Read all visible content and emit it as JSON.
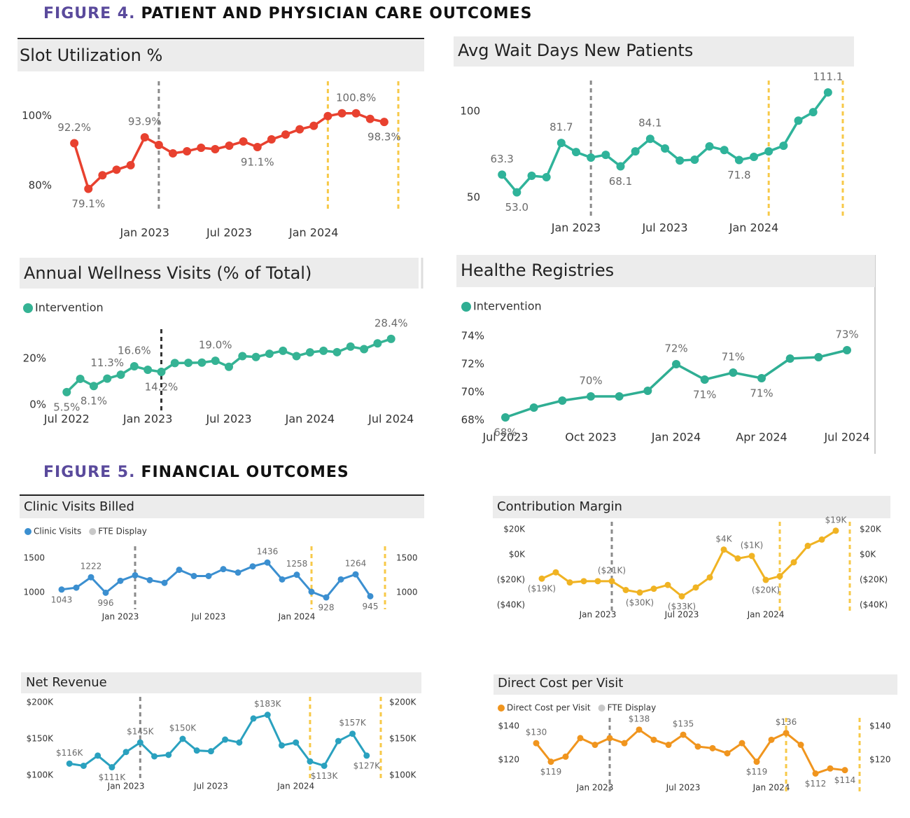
{
  "figures": [
    {
      "label": "FIGURE 4.",
      "title": "PATIENT AND PHYSICIAN CARE OUTCOMES"
    },
    {
      "label": "FIGURE 5.",
      "title": "FINANCIAL OUTCOMES"
    }
  ],
  "chart_data": [
    {
      "type": "line",
      "title": "Slot Utilization %",
      "color": "#e8412f",
      "x": [
        "2022-08",
        "2022-09",
        "2022-10",
        "2022-11",
        "2022-12",
        "2023-01",
        "2023-02",
        "2023-03",
        "2023-04",
        "2023-05",
        "2023-06",
        "2023-07",
        "2023-08",
        "2023-09",
        "2023-10",
        "2023-11",
        "2023-12",
        "2024-01",
        "2024-02",
        "2024-03",
        "2024-04",
        "2024-05",
        "2024-06"
      ],
      "values": [
        92.2,
        79.1,
        83.0,
        84.6,
        85.9,
        93.9,
        91.7,
        89.3,
        89.9,
        90.9,
        90.5,
        91.5,
        92.7,
        91.1,
        93.3,
        94.7,
        96.2,
        97.2,
        100.0,
        100.8,
        100.8,
        99.2,
        98.3
      ],
      "value_labels": [
        "92.2%",
        "79.1%",
        null,
        null,
        null,
        "93.9%",
        null,
        null,
        null,
        null,
        null,
        null,
        null,
        "91.1%",
        null,
        null,
        null,
        null,
        null,
        null,
        "100.8%",
        null,
        "98.3%"
      ],
      "xlim": [
        "2022-07",
        "2024-07"
      ],
      "xticks": [
        {
          "value": "2023-01",
          "label": "Jan 2023"
        },
        {
          "value": "2023-07",
          "label": "Jul 2023"
        },
        {
          "value": "2024-01",
          "label": "Jan 2024"
        }
      ],
      "ylim": [
        73,
        110
      ],
      "yticks": [
        {
          "value": 80,
          "label": "80%"
        },
        {
          "value": 100,
          "label": "100%"
        }
      ],
      "reference_lines": [
        {
          "x": "2023-02",
          "color": "#8a8a8a"
        },
        {
          "x": "2024-02",
          "color": "#f7c948"
        },
        {
          "x": "2024-07",
          "color": "#f7c948"
        }
      ]
    },
    {
      "type": "line",
      "title": "Avg Wait Days New Patients",
      "color": "#2fb39a",
      "x": [
        "2022-08",
        "2022-09",
        "2022-10",
        "2022-11",
        "2022-12",
        "2023-01",
        "2023-02",
        "2023-03",
        "2023-04",
        "2023-05",
        "2023-06",
        "2023-07",
        "2023-08",
        "2023-09",
        "2023-10",
        "2023-11",
        "2023-12",
        "2024-01",
        "2024-02",
        "2024-03",
        "2024-04",
        "2024-05",
        "2024-06"
      ],
      "values": [
        63.3,
        53.0,
        62.6,
        61.8,
        81.7,
        76.4,
        73.2,
        74.8,
        68.1,
        76.8,
        84.1,
        78.5,
        71.5,
        72.0,
        79.7,
        77.6,
        71.8,
        73.6,
        76.8,
        80.1,
        94.7,
        99.6,
        111.1
      ],
      "value_labels": [
        "63.3",
        "53.0",
        null,
        null,
        "81.7",
        null,
        null,
        null,
        "68.1",
        null,
        "84.1",
        null,
        null,
        null,
        null,
        null,
        "71.8",
        null,
        null,
        null,
        null,
        null,
        "111.1"
      ],
      "xlim": [
        "2022-07",
        "2024-07"
      ],
      "xticks": [
        {
          "value": "2023-01",
          "label": "Jan 2023"
        },
        {
          "value": "2023-07",
          "label": "Jul 2023"
        },
        {
          "value": "2024-01",
          "label": "Jan 2024"
        }
      ],
      "ylim": [
        39,
        118
      ],
      "yticks": [
        50,
        100
      ],
      "reference_lines": [
        {
          "x": "2023-02",
          "color": "#8a8a8a"
        },
        {
          "x": "2024-02",
          "color": "#f7c948"
        },
        {
          "x": "2024-07",
          "color": "#f7c948"
        }
      ]
    },
    {
      "type": "line",
      "title": "Annual Wellness Visits (% of Total)",
      "x": [
        "2022-07",
        "2022-08",
        "2022-09",
        "2022-10",
        "2022-11",
        "2022-12",
        "2023-01",
        "2023-02",
        "2023-03",
        "2023-04",
        "2023-05",
        "2023-06",
        "2023-07",
        "2023-08",
        "2023-09",
        "2023-10",
        "2023-11",
        "2023-12",
        "2024-01",
        "2024-02",
        "2024-03",
        "2024-04",
        "2024-05",
        "2024-06",
        "2024-07"
      ],
      "series": [
        {
          "name": "Intervention",
          "color": "#35b394",
          "values": [
            5.5,
            11.2,
            8.1,
            11.3,
            13.0,
            16.6,
            15.1,
            14.2,
            18.0,
            18.1,
            18.2,
            19.0,
            16.4,
            21.0,
            20.6,
            22.0,
            23.3,
            21.0,
            22.6,
            23.3,
            22.7,
            25.1,
            24.0,
            26.5,
            28.4
          ],
          "value_labels": [
            "5.5%",
            null,
            "8.1%",
            "11.3%",
            null,
            "16.6%",
            null,
            "14.2%",
            null,
            null,
            null,
            "19.0%",
            null,
            null,
            null,
            null,
            null,
            null,
            null,
            null,
            null,
            null,
            null,
            null,
            "28.4%"
          ]
        }
      ],
      "xlim": [
        "2022-06",
        "2024-08"
      ],
      "xticks": [
        {
          "value": "2022-07",
          "label": "Jul 2022"
        },
        {
          "value": "2023-01",
          "label": "Jan 2023"
        },
        {
          "value": "2023-07",
          "label": "Jul 2023"
        },
        {
          "value": "2024-01",
          "label": "Jan 2024"
        },
        {
          "value": "2024-07",
          "label": "Jul 2024"
        }
      ],
      "ylim": [
        -3.6,
        32.6
      ],
      "yticks": [
        {
          "value": 0,
          "label": "0%"
        },
        {
          "value": 20,
          "label": "20%"
        }
      ],
      "reference_lines": [
        {
          "x": "2023-02",
          "color": "#333333"
        }
      ]
    },
    {
      "type": "line",
      "title": "Healthe Registries",
      "x": [
        "2023-07",
        "2023-08",
        "2023-09",
        "2023-10",
        "2023-11",
        "2023-12",
        "2024-01",
        "2024-02",
        "2024-03",
        "2024-04",
        "2024-05",
        "2024-06",
        "2024-07"
      ],
      "series": [
        {
          "name": "Intervention",
          "color": "#2fae93",
          "values": [
            68.2,
            68.9,
            69.4,
            69.7,
            69.7,
            70.1,
            72.0,
            70.9,
            71.4,
            71.0,
            72.4,
            72.5,
            73.0
          ],
          "value_labels": [
            "68%",
            null,
            null,
            "70%",
            null,
            null,
            "72%",
            "71%",
            "71%",
            "71%",
            null,
            null,
            "73%"
          ]
        }
      ],
      "xlim": [
        "2023-07",
        "2024-07"
      ],
      "xticks": [
        {
          "value": "2023-07",
          "label": "Jul 2023"
        },
        {
          "value": "2023-10",
          "label": "Oct 2023"
        },
        {
          "value": "2024-01",
          "label": "Jan 2024"
        },
        {
          "value": "2024-04",
          "label": "Apr 2024"
        },
        {
          "value": "2024-07",
          "label": "Jul 2024"
        }
      ],
      "ylim": [
        67.8,
        74.7
      ],
      "yticks": [
        {
          "value": 68,
          "label": "68%"
        },
        {
          "value": 70,
          "label": "70%"
        },
        {
          "value": 72,
          "label": "72%"
        },
        {
          "value": 74,
          "label": "74%"
        }
      ],
      "reference_lines": []
    },
    {
      "type": "line",
      "title": "Clinic Visits Billed",
      "x": [
        "2022-09",
        "2022-10",
        "2022-11",
        "2022-12",
        "2023-01",
        "2023-02",
        "2023-03",
        "2023-04",
        "2023-05",
        "2023-06",
        "2023-07",
        "2023-08",
        "2023-09",
        "2023-10",
        "2023-11",
        "2023-12",
        "2024-01",
        "2024-02",
        "2024-03",
        "2024-04",
        "2024-05",
        "2024-06"
      ],
      "series": [
        {
          "name": "Clinic Visits",
          "color": "#3b8fd0",
          "values": [
            1043,
            1070,
            1222,
            996,
            1170,
            1250,
            1180,
            1140,
            1330,
            1240,
            1240,
            1340,
            1290,
            1380,
            1436,
            1190,
            1258,
            1010,
            928,
            1190,
            1264,
            945
          ],
          "value_labels": [
            "1043",
            null,
            "1222",
            "996",
            null,
            null,
            null,
            null,
            null,
            null,
            null,
            null,
            null,
            null,
            "1436",
            null,
            "1258",
            null,
            "928",
            null,
            "1264",
            "945"
          ]
        },
        {
          "name": "FTE Display",
          "color": "#c8c8c8",
          "axis": "y2",
          "values": [
            null,
            null,
            null,
            null,
            null,
            null,
            null,
            null,
            null,
            null,
            null,
            null,
            null,
            null,
            null,
            null,
            null,
            null,
            null,
            null,
            null,
            null
          ]
        }
      ],
      "xlim": [
        "2022-08",
        "2024-07"
      ],
      "xticks": [
        {
          "value": "2023-01",
          "label": "Jan 2023"
        },
        {
          "value": "2023-07",
          "label": "Jul 2023"
        },
        {
          "value": "2024-01",
          "label": "Jan 2024"
        }
      ],
      "ylim": [
        755,
        1673
      ],
      "yticks": [
        1000,
        1500
      ],
      "y2lim": [
        755,
        1673
      ],
      "y2ticks": [
        1000,
        1500
      ],
      "reference_lines": [
        {
          "x": "2023-02",
          "color": "#8a8a8a"
        },
        {
          "x": "2024-02",
          "color": "#f7c948"
        },
        {
          "x": "2024-07",
          "color": "#f7c948"
        }
      ]
    },
    {
      "type": "line",
      "title": "Contribution Margin",
      "color": "#f0b323",
      "x": [
        "2022-09",
        "2022-10",
        "2022-11",
        "2022-12",
        "2023-01",
        "2023-02",
        "2023-03",
        "2023-04",
        "2023-05",
        "2023-06",
        "2023-07",
        "2023-08",
        "2023-09",
        "2023-10",
        "2023-11",
        "2023-12",
        "2024-01",
        "2024-02",
        "2024-03",
        "2024-04",
        "2024-05",
        "2024-06"
      ],
      "values": [
        -19000,
        -14000,
        -22000,
        -21000,
        -21000,
        -21000,
        -28000,
        -30000,
        -27000,
        -24000,
        -33000,
        -26000,
        -18000,
        4000,
        -3000,
        -1000,
        -20000,
        -17000,
        -6000,
        7000,
        12000,
        19000
      ],
      "value_labels": [
        "($19K)",
        null,
        null,
        null,
        null,
        "($21K)",
        null,
        "($30K)",
        null,
        null,
        "($33K)",
        null,
        null,
        "$4K",
        null,
        "($1K)",
        "($20K)",
        null,
        null,
        null,
        null,
        "$19K"
      ],
      "xlim": [
        "2022-08",
        "2024-07"
      ],
      "xticks": [
        {
          "value": "2023-01",
          "label": "Jan 2023"
        },
        {
          "value": "2023-07",
          "label": "Jul 2023"
        },
        {
          "value": "2024-01",
          "label": "Jan 2024"
        }
      ],
      "ylim": [
        -44400,
        26100
      ],
      "yticks": [
        {
          "value": 20000,
          "label": "$20K"
        },
        {
          "value": 0,
          "label": "$0K"
        },
        {
          "value": -20000,
          "label": "($20K)"
        },
        {
          "value": -40000,
          "label": "($40K)"
        }
      ],
      "y2lim": [
        -44400,
        26100
      ],
      "y2ticks": [
        {
          "value": 20000,
          "label": "$20K"
        },
        {
          "value": 0,
          "label": "$0K"
        },
        {
          "value": -20000,
          "label": "($20K)"
        },
        {
          "value": -40000,
          "label": "($40K)"
        }
      ],
      "reference_lines": [
        {
          "x": "2023-02",
          "color": "#8a8a8a"
        },
        {
          "x": "2024-02",
          "color": "#f7c948"
        },
        {
          "x": "2024-07",
          "color": "#f7c948"
        }
      ]
    },
    {
      "type": "line",
      "title": "Net Revenue",
      "color": "#2aa1bf",
      "x": [
        "2022-09",
        "2022-10",
        "2022-11",
        "2022-12",
        "2023-01",
        "2023-02",
        "2023-03",
        "2023-04",
        "2023-05",
        "2023-06",
        "2023-07",
        "2023-08",
        "2023-09",
        "2023-10",
        "2023-11",
        "2023-12",
        "2024-01",
        "2024-02",
        "2024-03",
        "2024-04",
        "2024-05",
        "2024-06"
      ],
      "values": [
        116000,
        113000,
        127000,
        111000,
        132000,
        145000,
        126000,
        128000,
        150000,
        134000,
        133000,
        149000,
        145000,
        178000,
        183000,
        141000,
        145000,
        119000,
        113000,
        147000,
        157000,
        127000
      ],
      "value_labels": [
        "$116K",
        null,
        null,
        "$111K",
        null,
        "$145K",
        null,
        null,
        "$150K",
        null,
        null,
        null,
        null,
        null,
        "$183K",
        null,
        null,
        null,
        "$113K",
        null,
        "$157K",
        "$127K"
      ],
      "xlim": [
        "2022-08",
        "2024-07"
      ],
      "xticks": [
        {
          "value": "2023-01",
          "label": "Jan 2023"
        },
        {
          "value": "2023-07",
          "label": "Jul 2023"
        },
        {
          "value": "2024-01",
          "label": "Jan 2024"
        }
      ],
      "ylim": [
        92300,
        207700
      ],
      "yticks": [
        {
          "value": 100000,
          "label": "$100K"
        },
        {
          "value": 150000,
          "label": "$150K"
        },
        {
          "value": 200000,
          "label": "$200K"
        }
      ],
      "y2lim": [
        92300,
        207700
      ],
      "y2ticks": [
        {
          "value": 100000,
          "label": "$100K"
        },
        {
          "value": 150000,
          "label": "$150K"
        },
        {
          "value": 200000,
          "label": "$200K"
        }
      ],
      "reference_lines": [
        {
          "x": "2023-02",
          "color": "#8a8a8a"
        },
        {
          "x": "2024-02",
          "color": "#f7c948"
        },
        {
          "x": "2024-07",
          "color": "#f7c948"
        }
      ]
    },
    {
      "type": "line",
      "title": "Direct Cost per Visit",
      "x": [
        "2022-09",
        "2022-10",
        "2022-11",
        "2022-12",
        "2023-01",
        "2023-02",
        "2023-03",
        "2023-04",
        "2023-05",
        "2023-06",
        "2023-07",
        "2023-08",
        "2023-09",
        "2023-10",
        "2023-11",
        "2023-12",
        "2024-01",
        "2024-02",
        "2024-03",
        "2024-04",
        "2024-05",
        "2024-06"
      ],
      "series": [
        {
          "name": "Direct Cost per Visit",
          "color": "#f0951e",
          "values": [
            130,
            119,
            122,
            133,
            129,
            133,
            130,
            138,
            132,
            129,
            135,
            128,
            127,
            124,
            130,
            119,
            132,
            136,
            129,
            112,
            115,
            114
          ],
          "value_labels": [
            "$130",
            "$119",
            null,
            null,
            null,
            null,
            null,
            "$138",
            null,
            null,
            "$135",
            null,
            null,
            null,
            null,
            "$119",
            null,
            "$136",
            null,
            "$112",
            null,
            "$114"
          ]
        },
        {
          "name": "FTE Display",
          "color": "#c8c8c8",
          "axis": "y2",
          "values": [
            null,
            null,
            null,
            null,
            null,
            null,
            null,
            null,
            null,
            null,
            null,
            null,
            null,
            null,
            null,
            null,
            null,
            null,
            null,
            null,
            null,
            null
          ]
        }
      ],
      "xlim": [
        "2022-08",
        "2024-07"
      ],
      "xticks": [
        {
          "value": "2023-01",
          "label": "Jan 2023"
        },
        {
          "value": "2023-07",
          "label": "Jul 2023"
        },
        {
          "value": "2024-01",
          "label": "Jan 2024"
        }
      ],
      "ylim": [
        101,
        145
      ],
      "yticks": [
        {
          "value": 120,
          "label": "$120"
        },
        {
          "value": 140,
          "label": "$140"
        }
      ],
      "y2lim": [
        101,
        145
      ],
      "y2ticks": [
        {
          "value": 120,
          "label": "$120"
        },
        {
          "value": 140,
          "label": "$140"
        }
      ],
      "reference_lines": [
        {
          "x": "2023-02",
          "color": "#8a8a8a"
        },
        {
          "x": "2024-02",
          "color": "#f7c948"
        },
        {
          "x": "2024-07",
          "color": "#f7c948"
        }
      ]
    }
  ]
}
